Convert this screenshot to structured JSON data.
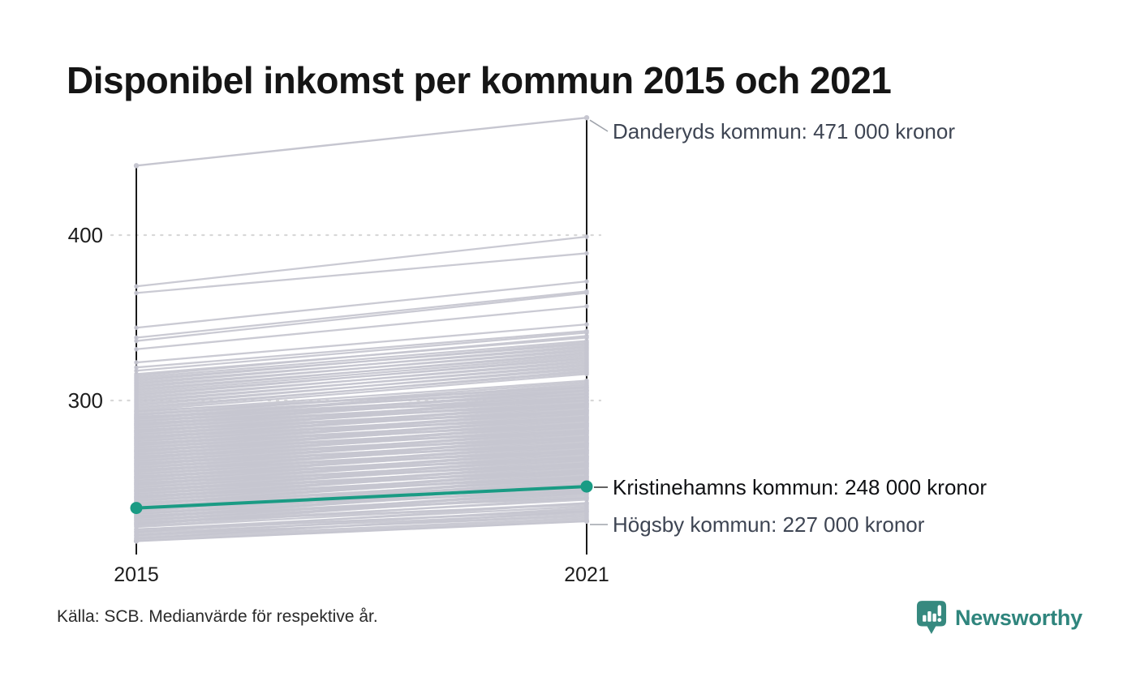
{
  "page": {
    "title": "Disponibel inkomst per kommun 2015 och 2021",
    "source_note": "Källa: SCB. Medianvärde för respektive år.",
    "brand_name": "Newsworthy"
  },
  "colors": {
    "accent": "#1a9b84",
    "brand": "#36897f",
    "line_gray": "#c6c6d0",
    "grid": "#d8d8d8",
    "axis": "#1a1a1a",
    "leader": "#9fa3ab",
    "leader_dark": "#2f2f2f",
    "white": "#ffffff"
  },
  "chart_data": {
    "type": "line",
    "variant": "slopegraph",
    "title": "Disponibel inkomst per kommun 2015 och 2021",
    "x_labels": [
      "2015",
      "2021"
    ],
    "y_ticks": [
      400,
      300
    ],
    "y_tick_labels": [
      "400",
      "300"
    ],
    "value_unit": "kronor",
    "ylim": [
      215,
      475
    ],
    "grid": "dotted-horizontal",
    "legend": "none",
    "annotations": [
      {
        "name": "Danderyds kommun",
        "label": "Danderyds kommun: 471 000 kronor",
        "values": [
          442,
          471
        ],
        "highlight": false
      },
      {
        "name": "Kristinehamns kommun",
        "label": "Kristinehamns kommun: 248 000 kronor",
        "values": [
          235,
          248
        ],
        "highlight": true
      },
      {
        "name": "Högsby kommun",
        "label": "Högsby kommun: 227 000 kronor",
        "values": [
          215,
          227
        ],
        "highlight": false
      }
    ],
    "background_series": [
      [
        369,
        399
      ],
      [
        365,
        389
      ],
      [
        344,
        372
      ],
      [
        338,
        366
      ],
      [
        336,
        365
      ],
      [
        331,
        357
      ],
      [
        323,
        346
      ],
      [
        320,
        342
      ],
      [
        318,
        341
      ],
      [
        316,
        338
      ],
      [
        315,
        339
      ],
      [
        314,
        336
      ],
      [
        313,
        334
      ],
      [
        312,
        335
      ],
      [
        311,
        332
      ],
      [
        310,
        333
      ],
      [
        309,
        330
      ],
      [
        308,
        331
      ],
      [
        307,
        328
      ],
      [
        306,
        329
      ],
      [
        305,
        327
      ],
      [
        304,
        325
      ],
      [
        303,
        326
      ],
      [
        302,
        323
      ],
      [
        301,
        324
      ],
      [
        300,
        321
      ],
      [
        299,
        322
      ],
      [
        298,
        319
      ],
      [
        297,
        320
      ],
      [
        296,
        317
      ],
      [
        295,
        318
      ],
      [
        294,
        316
      ],
      [
        293,
        312
      ],
      [
        292,
        309
      ],
      [
        291,
        311
      ],
      [
        290,
        307
      ],
      [
        289,
        308
      ],
      [
        288,
        305
      ],
      [
        287,
        306
      ],
      [
        286,
        303
      ],
      [
        285,
        304
      ],
      [
        284,
        301
      ],
      [
        283,
        302
      ],
      [
        282,
        299
      ],
      [
        281,
        300
      ],
      [
        280,
        297
      ],
      [
        279,
        298
      ],
      [
        278,
        295
      ],
      [
        277,
        296
      ],
      [
        276,
        293
      ],
      [
        275,
        294
      ],
      [
        274,
        291
      ],
      [
        273,
        292
      ],
      [
        272,
        289
      ],
      [
        271,
        290
      ],
      [
        270,
        287
      ],
      [
        269,
        288
      ],
      [
        268,
        285
      ],
      [
        267,
        286
      ],
      [
        266,
        283
      ],
      [
        265,
        284
      ],
      [
        264,
        281
      ],
      [
        263,
        282
      ],
      [
        262,
        279
      ],
      [
        261,
        280
      ],
      [
        260,
        277
      ],
      [
        259,
        278
      ],
      [
        258,
        275
      ],
      [
        257,
        276
      ],
      [
        256,
        273
      ],
      [
        255,
        274
      ],
      [
        254,
        271
      ],
      [
        253,
        272
      ],
      [
        252,
        269
      ],
      [
        251,
        270
      ],
      [
        250,
        267
      ],
      [
        249,
        268
      ],
      [
        248,
        265
      ],
      [
        247,
        266
      ],
      [
        246,
        263
      ],
      [
        245,
        264
      ],
      [
        244,
        261
      ],
      [
        243,
        262
      ],
      [
        242,
        259
      ],
      [
        241,
        260
      ],
      [
        240,
        257
      ],
      [
        239,
        258
      ],
      [
        238,
        255
      ],
      [
        237,
        256
      ],
      [
        236,
        253
      ],
      [
        235,
        254
      ],
      [
        234,
        251
      ],
      [
        233,
        252
      ],
      [
        232,
        249
      ],
      [
        231,
        250
      ],
      [
        230,
        247
      ],
      [
        229,
        248
      ],
      [
        228,
        245
      ],
      [
        227,
        246
      ],
      [
        226,
        243
      ],
      [
        225,
        244
      ],
      [
        224,
        241
      ],
      [
        293.5,
        308
      ],
      [
        291.5,
        306
      ],
      [
        289.5,
        304
      ],
      [
        287.5,
        302
      ],
      [
        285.5,
        300
      ],
      [
        283.5,
        298
      ],
      [
        281.5,
        296
      ],
      [
        279.5,
        294
      ],
      [
        277.5,
        292
      ],
      [
        275.5,
        290
      ],
      [
        273.5,
        288
      ],
      [
        271.5,
        286
      ],
      [
        269.5,
        284
      ],
      [
        267.5,
        282
      ],
      [
        265.5,
        280
      ],
      [
        263.5,
        278
      ],
      [
        261.5,
        276
      ],
      [
        259.5,
        274
      ],
      [
        257.5,
        272
      ],
      [
        255.5,
        270
      ],
      [
        253.5,
        268
      ],
      [
        251.5,
        266
      ],
      [
        249.5,
        264
      ],
      [
        247.5,
        262
      ],
      [
        245.5,
        260
      ],
      [
        243.5,
        258
      ],
      [
        241.5,
        256
      ],
      [
        239.5,
        254
      ],
      [
        237.5,
        252
      ],
      [
        235.5,
        250
      ],
      [
        233.5,
        248
      ],
      [
        231.5,
        246
      ],
      [
        229.5,
        244
      ],
      [
        227.5,
        242
      ],
      [
        225.5,
        240
      ],
      [
        223.5,
        238
      ],
      [
        290.2,
        300
      ],
      [
        286.2,
        297
      ],
      [
        282.2,
        293
      ],
      [
        278.2,
        289
      ],
      [
        274.2,
        285
      ],
      [
        270.2,
        281
      ],
      [
        266.2,
        277
      ],
      [
        262.2,
        273
      ],
      [
        258.2,
        269
      ],
      [
        254.2,
        265
      ],
      [
        250.2,
        261
      ],
      [
        246.2,
        257
      ],
      [
        242.2,
        253
      ],
      [
        238.2,
        249
      ],
      [
        234.2,
        245
      ],
      [
        230.2,
        241
      ],
      [
        226.2,
        237
      ],
      [
        222.2,
        233
      ],
      [
        288.8,
        310
      ],
      [
        284.8,
        306
      ],
      [
        280.8,
        302
      ],
      [
        276.8,
        298
      ],
      [
        272.8,
        294
      ],
      [
        268.8,
        290
      ],
      [
        264.8,
        286
      ],
      [
        260.8,
        282
      ],
      [
        256.8,
        278
      ],
      [
        252.8,
        274
      ],
      [
        248.8,
        270
      ],
      [
        244.8,
        266
      ],
      [
        240.8,
        262
      ],
      [
        236.8,
        258
      ],
      [
        232.8,
        254
      ],
      [
        228.8,
        250
      ],
      [
        224.8,
        246
      ],
      [
        222,
        236
      ],
      [
        221,
        234
      ],
      [
        220,
        232
      ],
      [
        219,
        230
      ],
      [
        218,
        231
      ],
      [
        217,
        229
      ],
      [
        216,
        228
      ],
      [
        216.5,
        233
      ],
      [
        218.5,
        235
      ],
      [
        220.5,
        238
      ]
    ]
  }
}
